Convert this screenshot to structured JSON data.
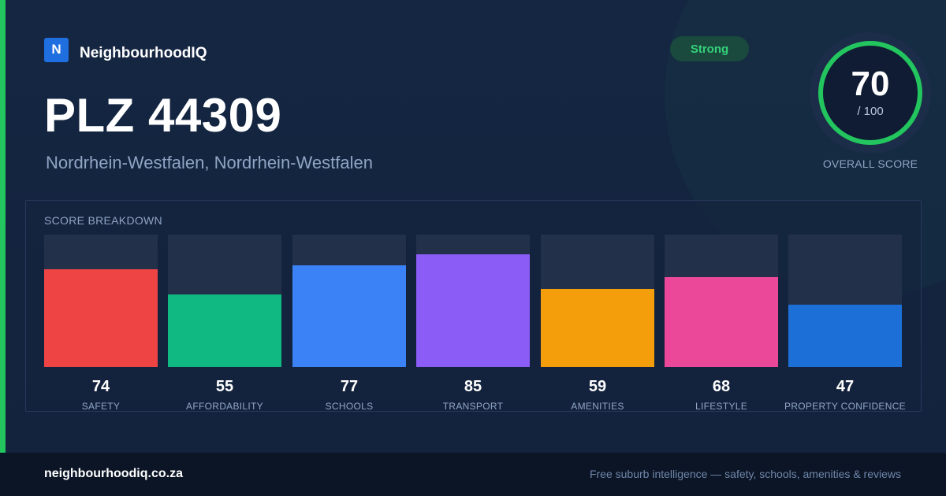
{
  "brand": {
    "logo_letter": "N",
    "name": "NeighbourhoodIQ"
  },
  "header": {
    "title": "PLZ 44309",
    "subtitle": "Nordrhein-Westfalen, Nordrhein-Westfalen",
    "badge": "Strong"
  },
  "overall": {
    "score": "70",
    "max_label": "/ 100",
    "caption": "OVERALL SCORE",
    "value": 70,
    "max": 100
  },
  "colors": {
    "accent": "#22c55e",
    "ring": "#22c55e",
    "bar_track": "#22304a"
  },
  "chart_data": {
    "type": "bar",
    "title": "SCORE BREAKDOWN",
    "ylim": [
      0,
      100
    ],
    "categories": [
      "SAFETY",
      "AFFORDABILITY",
      "SCHOOLS",
      "TRANSPORT",
      "AMENITIES",
      "LIFESTYLE",
      "PROPERTY CONFIDENCE"
    ],
    "values": [
      74,
      55,
      77,
      85,
      59,
      68,
      47
    ],
    "colors": [
      "#ef4444",
      "#10b981",
      "#3b82f6",
      "#8b5cf6",
      "#f59e0b",
      "#ec4899",
      "#1d6fd8"
    ]
  },
  "footer": {
    "url": "neighbourhoodiq.co.za",
    "tagline": "Free suburb intelligence — safety, schools, amenities & reviews"
  }
}
